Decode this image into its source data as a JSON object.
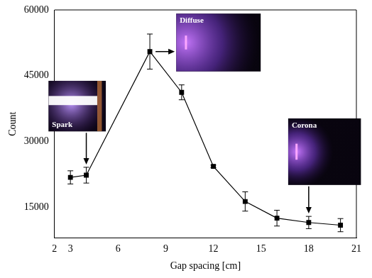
{
  "chart_data": {
    "type": "line",
    "x": [
      3,
      4,
      8,
      10,
      12,
      14,
      16,
      18,
      20
    ],
    "values": [
      21800,
      22300,
      50500,
      41200,
      24300,
      16300,
      12500,
      11500,
      10900
    ],
    "errors": [
      1500,
      1800,
      4000,
      1700,
      300,
      2200,
      1800,
      1400,
      1500
    ],
    "color": "#000000",
    "marker": "square",
    "line_style": "solid",
    "xlabel": "Gap spacing [cm]",
    "ylabel": "Count",
    "xlim": [
      2,
      21
    ],
    "xticks": [
      2,
      3,
      6,
      9,
      12,
      15,
      18,
      21
    ],
    "ylim": [
      8000,
      60000
    ],
    "yticks": [
      15000,
      30000,
      45000,
      60000
    ],
    "grid": false,
    "annotations": [
      {
        "text": "Spark",
        "x": 4
      },
      {
        "text": "Diffuse",
        "x": 8
      },
      {
        "text": "Corona",
        "x": 18
      }
    ]
  }
}
